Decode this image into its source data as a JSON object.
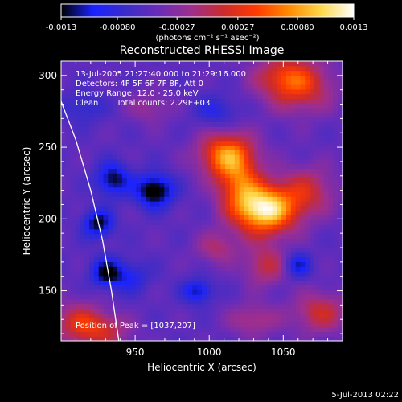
{
  "chart_data": {
    "type": "heatmap",
    "title": "Reconstructed RHESSI Image",
    "xlabel": "Heliocentric X (arcsec)",
    "ylabel": "Heliocentric Y (arcsec)",
    "xlim": [
      900,
      1090
    ],
    "ylim": [
      115,
      310
    ],
    "x_ticks": [
      "950",
      "1000",
      "1050"
    ],
    "x_tick_values": [
      950,
      1000,
      1050
    ],
    "y_ticks": [
      "150",
      "200",
      "250",
      "300"
    ],
    "y_tick_values": [
      150,
      200,
      250,
      300
    ],
    "colorbar": {
      "ticks": [
        "-0.0013",
        "-0.00080",
        "-0.00027",
        "0.00027",
        "0.00080",
        "0.0013"
      ],
      "tick_values": [
        -0.0013,
        -0.0008,
        -0.00027,
        0.00027,
        0.0008,
        0.0013
      ],
      "unit_label": "(photons cm⁻² s⁻¹ asec⁻²)",
      "stops": [
        "#000000",
        "#1a22ff",
        "#3b2cc8",
        "#6a2cb8",
        "#9e2e8e",
        "#cc2b2b",
        "#ff3a00",
        "#ff8a00",
        "#ffd84a",
        "#ffffff"
      ]
    },
    "annotations": [
      "13-Jul-2005 21:27:40.000 to 21:29:16.000",
      "Detectors: 4F 5F 6F 7F 8F, Att 0",
      "Energy Range: 12.0 - 25.0 keV",
      "Clean",
      "Total counts: 2.29E+03"
    ],
    "peak_label": "Position of Peak = [1037,207]",
    "peak": [
      1037,
      207
    ],
    "sources": [
      {
        "x": 1037,
        "y": 207,
        "sx": 15,
        "sy": 12,
        "amp": 1.35
      },
      {
        "x": 1012,
        "y": 245,
        "sx": 13,
        "sy": 11,
        "amp": 0.95
      },
      {
        "x": 1020,
        "y": 225,
        "sx": 10,
        "sy": 12,
        "amp": 0.6
      },
      {
        "x": 1052,
        "y": 300,
        "sx": 15,
        "sy": 10,
        "amp": 0.55
      },
      {
        "x": 1062,
        "y": 290,
        "sx": 16,
        "sy": 12,
        "amp": 0.45
      },
      {
        "x": 1067,
        "y": 220,
        "sx": 13,
        "sy": 12,
        "amp": 0.45
      },
      {
        "x": 1038,
        "y": 168,
        "sx": 10,
        "sy": 10,
        "amp": 0.45
      },
      {
        "x": 1005,
        "y": 180,
        "sx": 10,
        "sy": 8,
        "amp": 0.35
      },
      {
        "x": 1075,
        "y": 135,
        "sx": 13,
        "sy": 10,
        "amp": 0.5
      },
      {
        "x": 1030,
        "y": 130,
        "sx": 12,
        "sy": 8,
        "amp": 0.35
      },
      {
        "x": 912,
        "y": 128,
        "sx": 12,
        "sy": 10,
        "amp": 0.55
      },
      {
        "x": 930,
        "y": 122,
        "sx": 12,
        "sy": 8,
        "amp": 0.4
      },
      {
        "x": 960,
        "y": 278,
        "sx": 10,
        "sy": 8,
        "amp": 0.25
      },
      {
        "x": 935,
        "y": 228,
        "sx": 8,
        "sy": 8,
        "amp": -0.6
      },
      {
        "x": 963,
        "y": 220,
        "sx": 9,
        "sy": 8,
        "amp": -0.75
      },
      {
        "x": 925,
        "y": 197,
        "sx": 7,
        "sy": 7,
        "amp": -0.6
      },
      {
        "x": 930,
        "y": 163,
        "sx": 7,
        "sy": 7,
        "amp": -0.55
      },
      {
        "x": 992,
        "y": 150,
        "sx": 7,
        "sy": 6,
        "amp": -0.5
      },
      {
        "x": 945,
        "y": 160,
        "sx": 10,
        "sy": 8,
        "amp": -0.35
      },
      {
        "x": 1060,
        "y": 168,
        "sx": 6,
        "sy": 6,
        "amp": -0.45
      },
      {
        "x": 1005,
        "y": 275,
        "sx": 10,
        "sy": 8,
        "amp": -0.3
      },
      {
        "x": 915,
        "y": 278,
        "sx": 10,
        "sy": 8,
        "amp": -0.25
      }
    ],
    "limb_curve": [
      [
        900,
        282
      ],
      [
        910,
        255
      ],
      [
        920,
        220
      ],
      [
        928,
        185
      ],
      [
        934,
        150
      ],
      [
        939,
        115
      ]
    ]
  },
  "footer": {
    "timestamp": "5-Jul-2013 02:22"
  }
}
